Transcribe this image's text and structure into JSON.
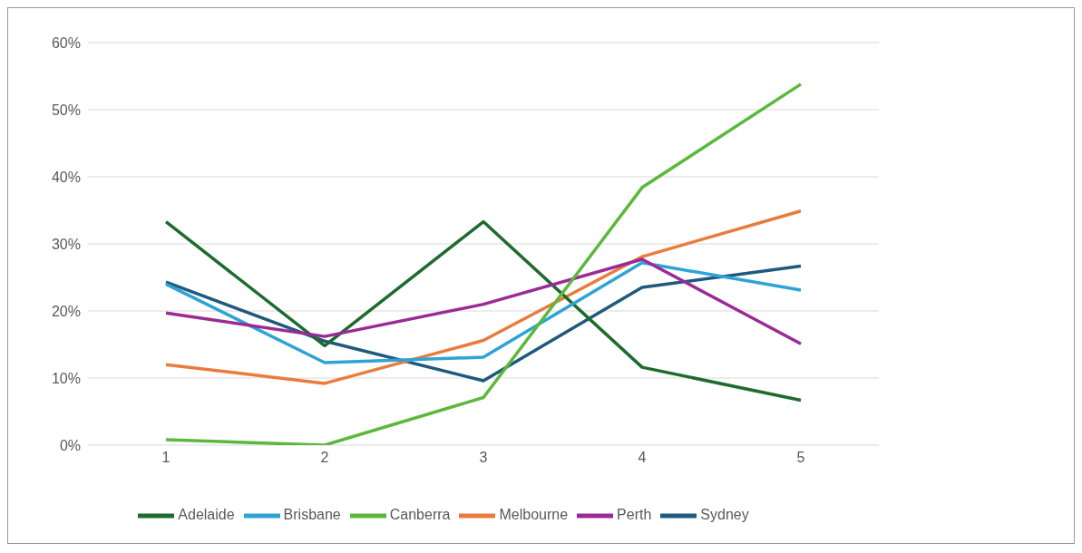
{
  "chart_data": {
    "type": "line",
    "categories": [
      "1",
      "2",
      "3",
      "4",
      "5"
    ],
    "series": [
      {
        "name": "Sydney",
        "color": "#1f5a7e",
        "values": [
          24.3,
          15.5,
          9.6,
          23.5,
          26.7
        ]
      },
      {
        "name": "Melbourne",
        "color": "#e97b3c",
        "values": [
          12.0,
          9.2,
          15.6,
          28.1,
          34.9
        ]
      },
      {
        "name": "Adelaide",
        "color": "#1e6b2e",
        "values": [
          33.3,
          14.8,
          33.3,
          11.6,
          6.7
        ]
      },
      {
        "name": "Brisbane",
        "color": "#2ea3d6",
        "values": [
          24.0,
          12.3,
          13.1,
          27.2,
          23.1
        ]
      },
      {
        "name": "Perth",
        "color": "#9b2a96",
        "values": [
          19.7,
          16.2,
          21.0,
          27.7,
          15.1
        ]
      },
      {
        "name": "Canberra",
        "color": "#5cb83c",
        "values": [
          0.8,
          0,
          7.1,
          38.4,
          53.8
        ]
      }
    ],
    "ylim": [
      0,
      60
    ],
    "yticks": [
      {
        "value": 0,
        "label": "0%"
      },
      {
        "value": 10,
        "label": "10%"
      },
      {
        "value": 20,
        "label": "20%"
      },
      {
        "value": 30,
        "label": "30%"
      },
      {
        "value": 40,
        "label": "40%"
      },
      {
        "value": 50,
        "label": "50%"
      },
      {
        "value": 60,
        "label": "60%"
      }
    ],
    "grid": "y",
    "legend": "bottom",
    "marker": "none",
    "line_style": "solid"
  }
}
